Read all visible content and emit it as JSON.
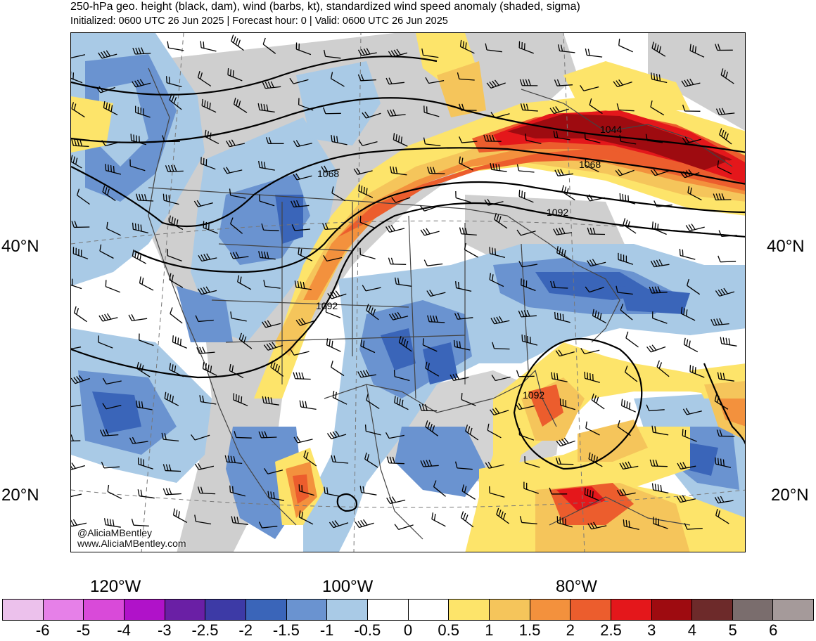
{
  "title": "250-hPa geo. height (black, dam), wind (barbs, kt), standardized wind speed anomaly (shaded, sigma)",
  "subtitle": "Initialized: 0600 UTC 26 Jun 2025 | Forecast hour: 0 | Valid: 0600 UTC 26 Jun 2025",
  "lat_labels": [
    "40°N",
    "20°N"
  ],
  "lon_labels": [
    "120°W",
    "100°W",
    "80°W"
  ],
  "contour_labels": [
    "1044",
    "1068",
    "1068",
    "1092",
    "1092",
    "1092"
  ],
  "credit": {
    "handle": "@AliciaMBentley",
    "website": "www.AliciaMBentley.com"
  },
  "colorbar": {
    "labels": [
      "-6",
      "-5",
      "-4",
      "-3",
      "-2.5",
      "-2",
      "-1.5",
      "-1",
      "-0.5",
      "0",
      "0.5",
      "1",
      "1.5",
      "2",
      "2.5",
      "3",
      "4",
      "5",
      "6"
    ],
    "colors": [
      "#ecc1ec",
      "#e680e8",
      "#d94ad9",
      "#b012c9",
      "#6a1fa5",
      "#3d3aa6",
      "#3a65b9",
      "#6a93d0",
      "#a9cae6",
      "#ffffff",
      "#ffffff",
      "#fde46a",
      "#f5c55b",
      "#f3913d",
      "#ec5d2d",
      "#e4171b",
      "#9e0b10",
      "#6d2a2a",
      "#7a6d6d",
      "#a59a9a"
    ]
  }
}
